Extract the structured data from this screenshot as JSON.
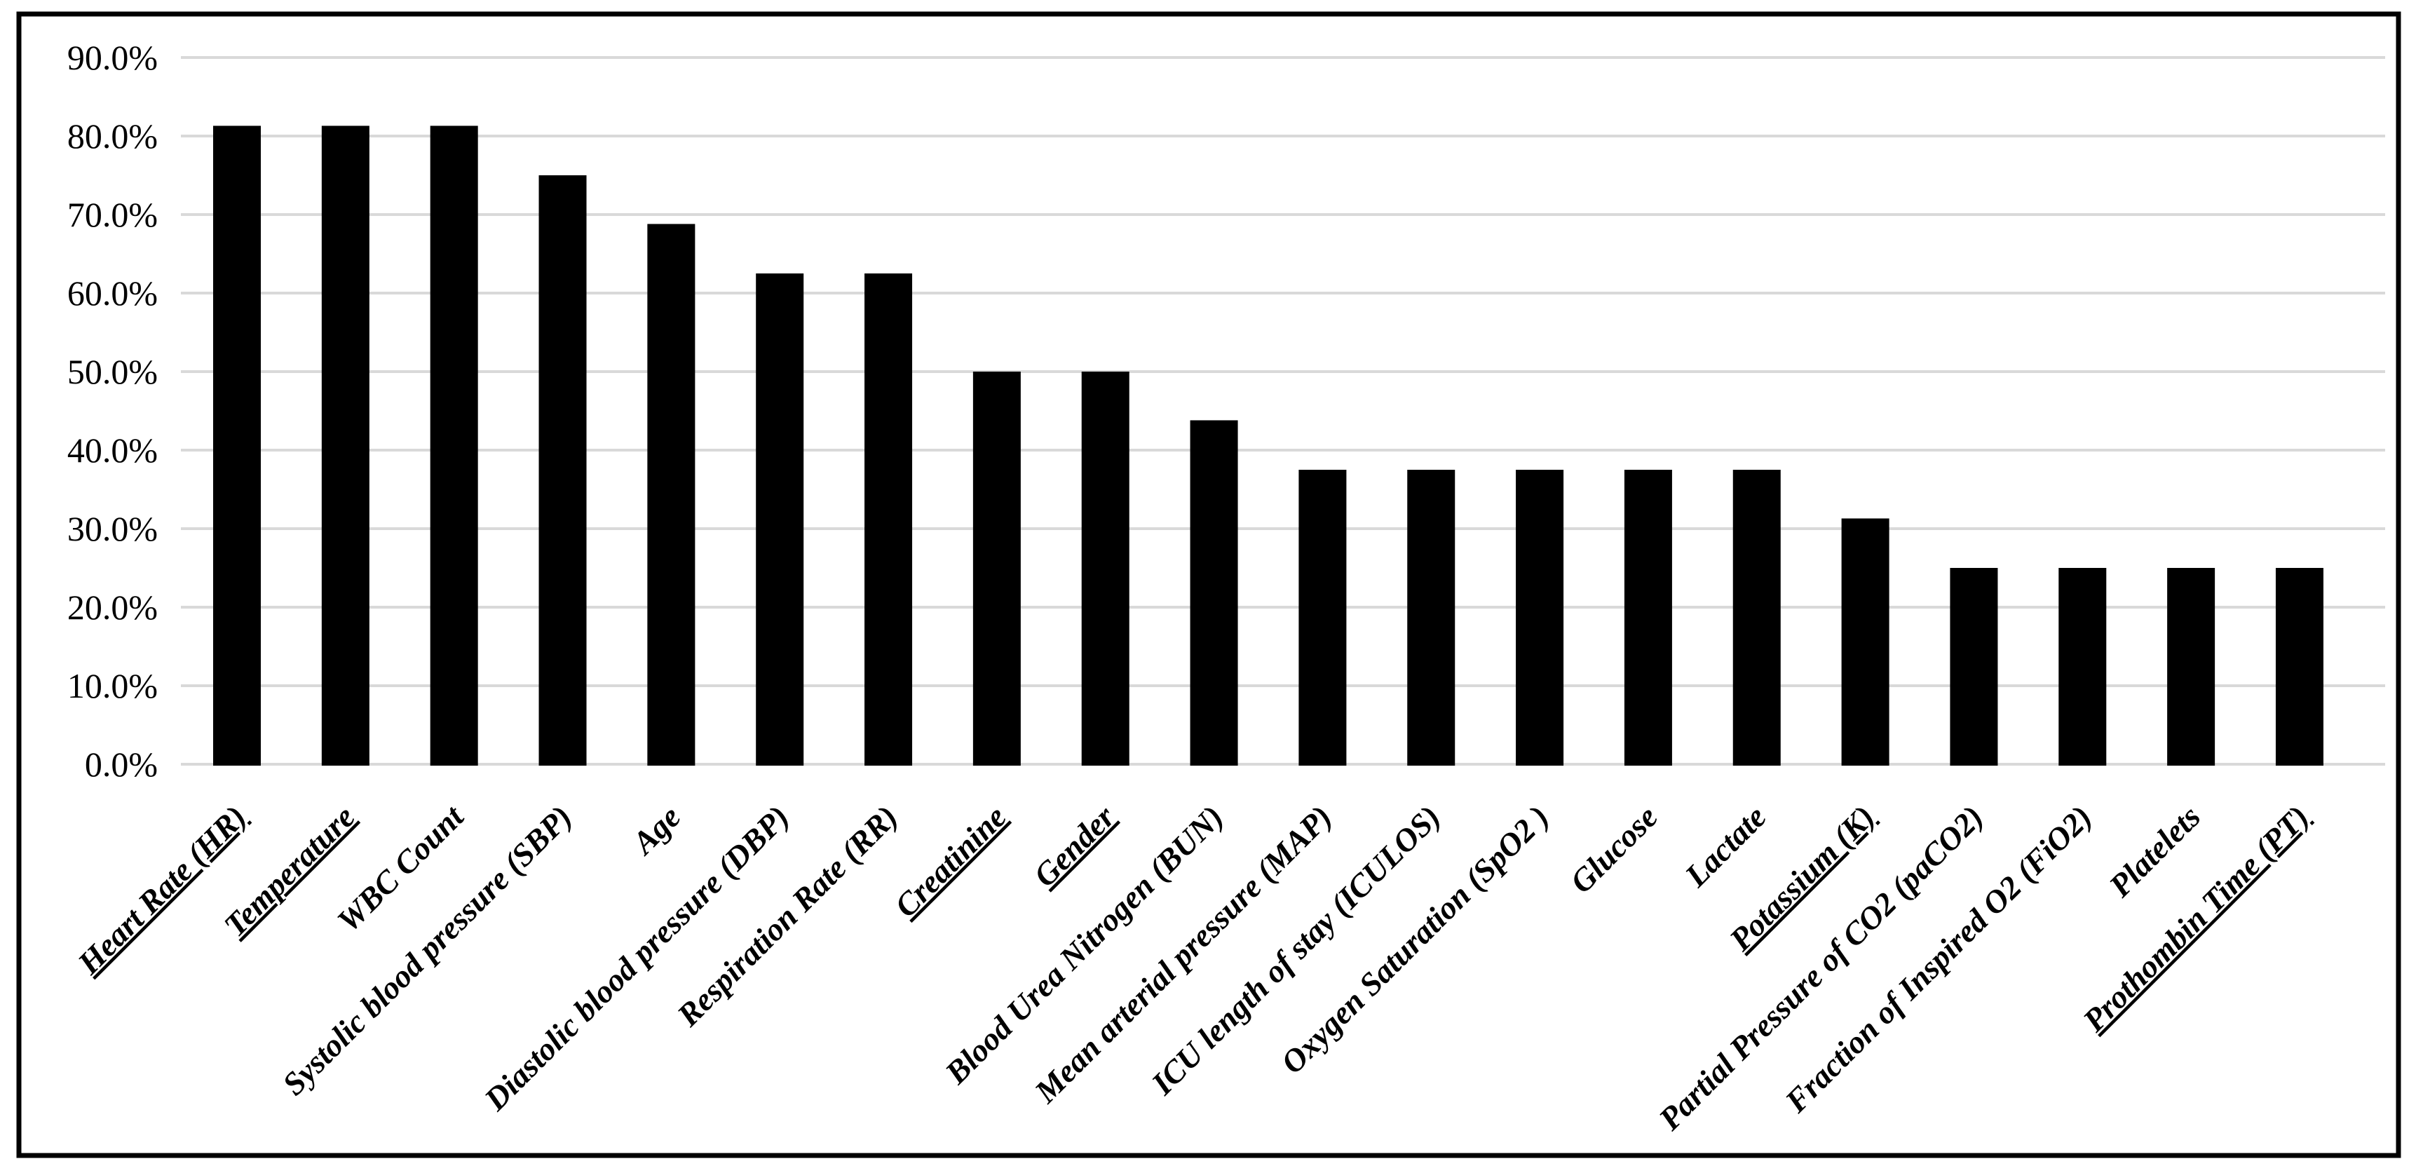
{
  "figure": {
    "background_color": "#ffffff",
    "frame_color": "#000000"
  },
  "chart_data": {
    "type": "bar",
    "title": "",
    "xlabel": "",
    "ylabel": "",
    "legend_position": "none",
    "grid": "horizontal",
    "gridline_color": "#d9d9d9",
    "bar_color": "#000000",
    "axis_label_color": "#000000",
    "ylim": [
      0,
      90
    ],
    "y_tick_labels": [
      "90.0%",
      "80.0%",
      "70.0%",
      "60.0%",
      "50.0%",
      "40.0%",
      "30.0%",
      "20.0%",
      "10.0%",
      "0.0%"
    ],
    "y_ticks": [
      {
        "value": 90,
        "label": "90.0%"
      },
      {
        "value": 80,
        "label": "80.0%"
      },
      {
        "value": 70,
        "label": "70.0%"
      },
      {
        "value": 60,
        "label": "60.0%"
      },
      {
        "value": 50,
        "label": "50.0%"
      },
      {
        "value": 40,
        "label": "40.0%"
      },
      {
        "value": 30,
        "label": "30.0%"
      },
      {
        "value": 20,
        "label": "20.0%"
      },
      {
        "value": 10,
        "label": "10.0%"
      },
      {
        "value": 0,
        "label": "0.0%"
      }
    ],
    "categories": [
      "Heart Rate (HR)",
      "Temperature",
      "WBC Count",
      "Systolic blood pressure (SBP)",
      "Age",
      "Diastolic blood pressure (DBP)",
      "Respiration Rate (RR)",
      "Creatinine",
      "Gender",
      "Blood Urea Nitrogen (BUN)",
      "Mean arterial pressure (MAP)",
      "ICU length of stay (ICULOS)",
      "Oxygen Saturation (SpO2 )",
      "Glucose",
      "Lactate",
      "Potassium (K)",
      "Partial Pressure of CO2 (paCO2)",
      "Fraction of Inspired O2 (FiO2)",
      "Platelets",
      "Prothombin Time (PT)"
    ],
    "values": [
      81.3,
      81.3,
      81.3,
      75.0,
      68.8,
      62.5,
      62.5,
      50.0,
      50.0,
      43.8,
      37.5,
      37.5,
      37.5,
      37.5,
      37.5,
      31.3,
      25.0,
      25.0,
      25.0,
      25.0
    ],
    "underlined_categories": [
      "Heart Rate (HR)",
      "Temperature",
      "Creatinine",
      "Gender",
      "Potassium (K)",
      "Prothombin Time (PT)"
    ]
  }
}
